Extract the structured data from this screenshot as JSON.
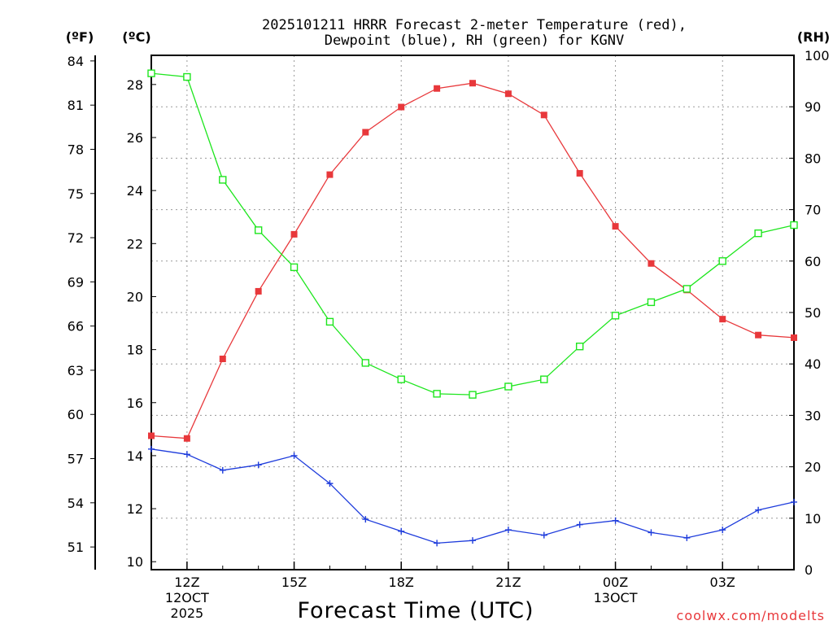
{
  "chart_data": {
    "type": "line",
    "title_line1": "2025101211 HRRR Forecast 2-meter Temperature (red),",
    "title_line2": "Dewpoint (blue), RH (green) for KGNV",
    "xlabel": "Forecast Time (UTC)",
    "unit_labels": {
      "fahrenheit": "(ºF)",
      "celsius": "(ºC)",
      "rh": "(RH)"
    },
    "x_hours": [
      0,
      1,
      2,
      3,
      4,
      5,
      6,
      7,
      8,
      9,
      10,
      11,
      12,
      13,
      14,
      15,
      16,
      17,
      18
    ],
    "x_ticks": [
      {
        "hour": 1,
        "label": "12Z",
        "sub1": "12OCT",
        "sub2": "2025"
      },
      {
        "hour": 4,
        "label": "15Z",
        "sub1": "",
        "sub2": ""
      },
      {
        "hour": 7,
        "label": "18Z",
        "sub1": "",
        "sub2": ""
      },
      {
        "hour": 10,
        "label": "21Z",
        "sub1": "",
        "sub2": ""
      },
      {
        "hour": 13,
        "label": "00Z",
        "sub1": "13OCT",
        "sub2": ""
      },
      {
        "hour": 16,
        "label": "03Z",
        "sub1": "",
        "sub2": ""
      }
    ],
    "celsius_axis": {
      "ylim": [
        9.7,
        29.1
      ],
      "ticks": [
        10,
        12,
        14,
        16,
        18,
        20,
        22,
        24,
        26,
        28
      ]
    },
    "fahrenheit_ticks": [
      51,
      54,
      57,
      60,
      63,
      66,
      69,
      72,
      75,
      78,
      81,
      84
    ],
    "rh_axis": {
      "ylim": [
        0,
        100
      ],
      "ticks": [
        0,
        10,
        20,
        30,
        40,
        50,
        60,
        70,
        80,
        90,
        100
      ]
    },
    "series": [
      {
        "name": "Temperature",
        "axis": "celsius",
        "color": "#e8383b",
        "marker": "filled-square",
        "values": [
          14.75,
          14.65,
          17.65,
          20.2,
          22.35,
          24.6,
          26.2,
          27.15,
          27.85,
          28.05,
          27.65,
          26.85,
          24.65,
          22.65,
          21.25,
          20.25,
          19.15,
          18.55,
          18.45
        ]
      },
      {
        "name": "Dewpoint",
        "axis": "celsius",
        "color": "#1e3cdc",
        "marker": "plus",
        "values": [
          14.25,
          14.05,
          13.45,
          13.65,
          14.0,
          12.95,
          11.6,
          11.15,
          10.7,
          10.8,
          11.2,
          11.0,
          11.4,
          11.55,
          11.1,
          10.9,
          11.2,
          11.95,
          12.25
        ]
      },
      {
        "name": "RH",
        "axis": "rh",
        "color": "#1ee61e",
        "marker": "open-square",
        "values": [
          96.5,
          95.8,
          75.8,
          66.0,
          58.8,
          48.2,
          40.2,
          37.0,
          34.2,
          34.0,
          35.6,
          37.0,
          43.4,
          49.4,
          52.0,
          54.6,
          60.0,
          65.4,
          67.0
        ]
      }
    ]
  },
  "credit": "coolwx.com/modelts"
}
